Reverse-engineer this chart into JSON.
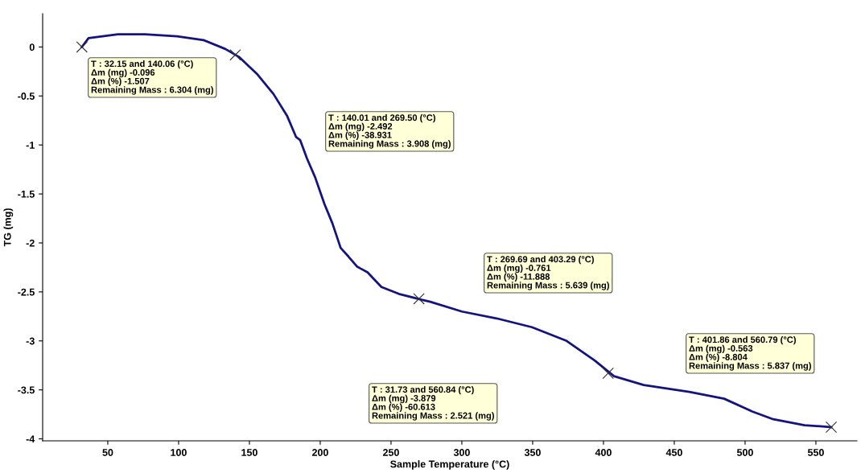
{
  "chart_data": {
    "type": "line",
    "xlabel": "Sample Temperature (°C)",
    "ylabel": "TG (mg)",
    "xlim": [
      4,
      579
    ],
    "ylim": [
      -4.02,
      0.34
    ],
    "xticks": [
      50,
      100,
      150,
      200,
      250,
      300,
      350,
      400,
      450,
      500,
      550
    ],
    "yticks": [
      {
        "value": 0,
        "label": "0"
      },
      -0.5,
      -1,
      -1.5,
      -2,
      -2.5,
      -3,
      -3.5,
      -4
    ],
    "grid": false,
    "legend": false,
    "series": [
      {
        "color": "#141480",
        "marker": "none",
        "line_style": "solid",
        "x": [
          31.73,
          36.4,
          57.2,
          76.2,
          98.9,
          117.6,
          133,
          142.5,
          155.7,
          167,
          176.5,
          183,
          185.8,
          190.7,
          196.4,
          202.9,
          208.6,
          214.4,
          220,
          225.9,
          228.3,
          233.4,
          243.2,
          255.5,
          271.6,
          277.7,
          300,
          324.5,
          349.5,
          374,
          393.8,
          407.4,
          428.4,
          460.5,
          485.2,
          505,
          519.9,
          542,
          560.84
        ],
        "values": [
          0,
          0.09,
          0.13,
          0.13,
          0.11,
          0.07,
          -0.02,
          -0.1,
          -0.28,
          -0.48,
          -0.7,
          -0.92,
          -0.95,
          -1.14,
          -1.33,
          -1.6,
          -1.8,
          -2.05,
          -2.14,
          -2.24,
          -2.26,
          -2.3,
          -2.45,
          -2.52,
          -2.58,
          -2.6,
          -2.7,
          -2.77,
          -2.86,
          -3.0,
          -3.2,
          -3.36,
          -3.45,
          -3.52,
          -3.59,
          -3.72,
          -3.8,
          -3.86,
          -3.88
        ]
      },
      {
        "type": "scatter",
        "color": "#303030",
        "marker": "cross",
        "x": [
          31.73,
          140.06,
          269.69,
          403.29,
          560.84
        ],
        "values": [
          0,
          -0.08,
          -2.57,
          -3.33,
          -3.88
        ]
      }
    ],
    "annotations": [
      "T : 32.15 and 140.06 (°C)\nΔm (mg) -0.096\nΔm (%) -1.507\nRemaining Mass : 6.304 (mg)",
      "T : 140.01 and 269.50 (°C)\nΔm (mg) -2.492\nΔm (%) -38.931\nRemaining Mass : 3.908 (mg)",
      "T : 269.69 and 403.29 (°C)\nΔm (mg) -0.761\nΔm (%) -11.888\nRemaining Mass : 5.639 (mg)",
      "T : 401.86 and 560.79 (°C)\nΔm (mg) -0.563\nΔm (%) -8.804\nRemaining Mass : 5.837 (mg)",
      "T : 31.73 and 560.84 (°C)\nΔm (mg) -3.879\nΔm (%) -60.613\nRemaining Mass : 2.521 (mg)"
    ]
  }
}
